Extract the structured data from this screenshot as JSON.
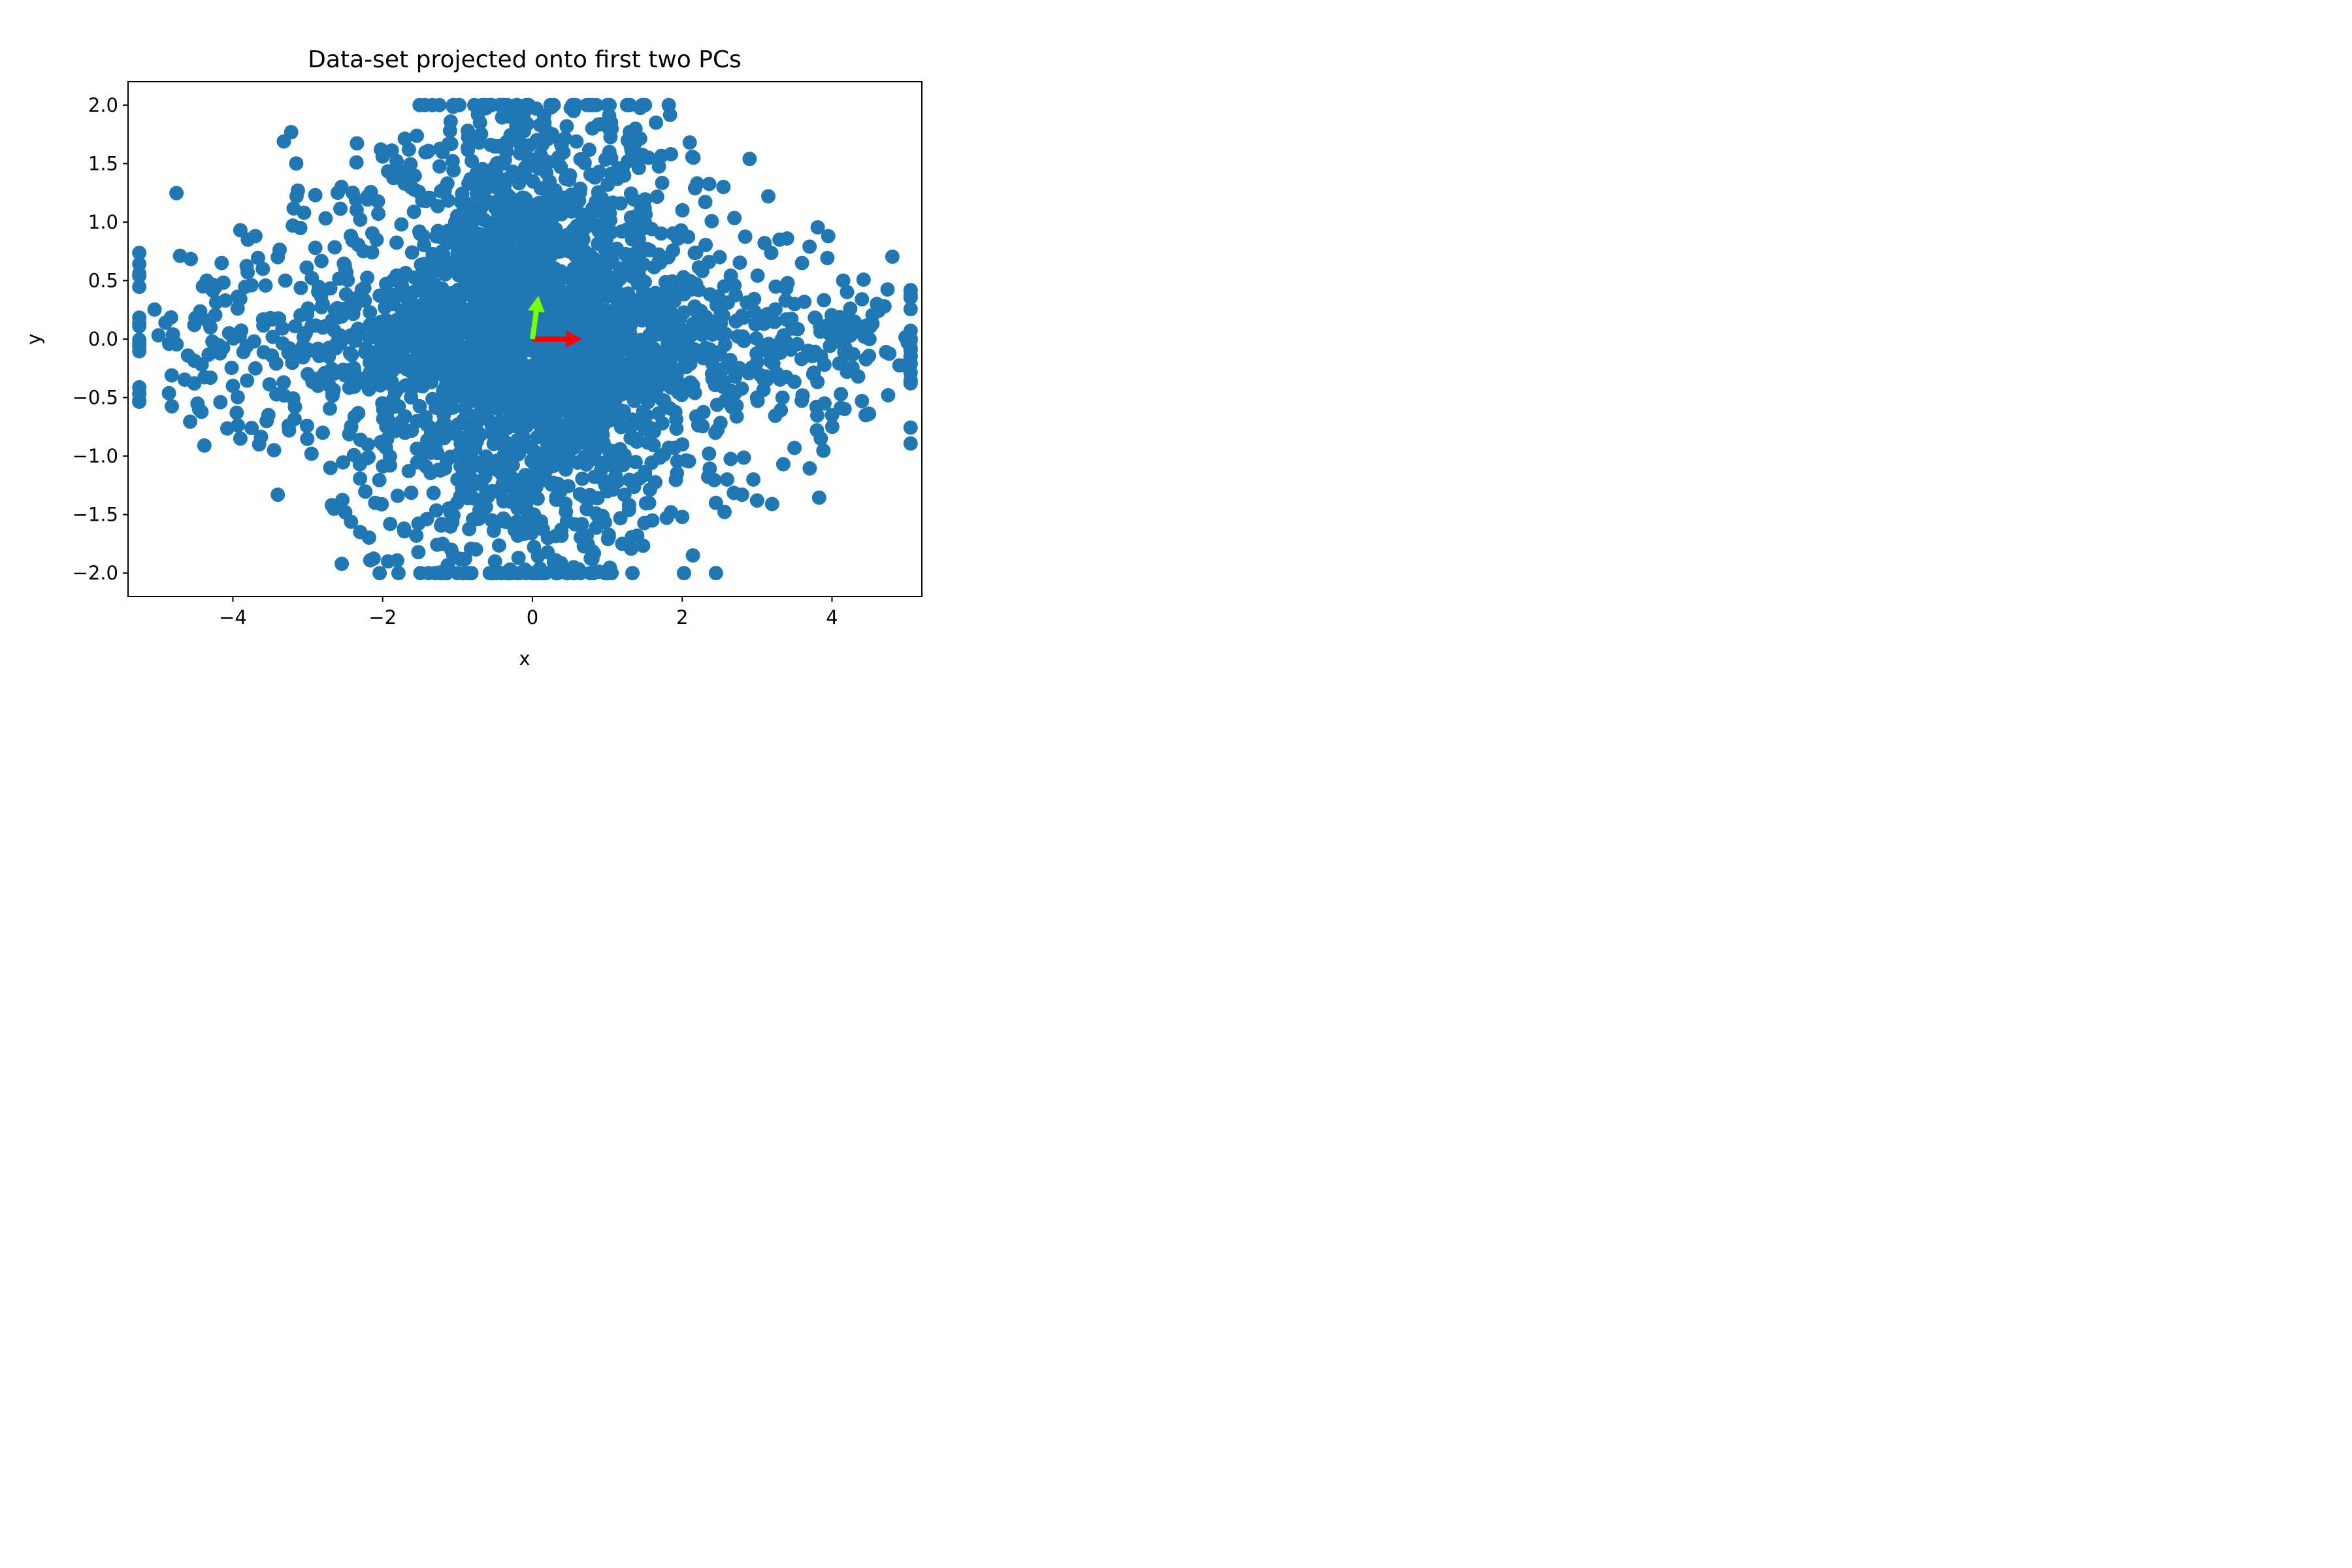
{
  "chart_data": {
    "type": "scatter",
    "title": "Data-set projected onto first two PCs",
    "xlabel": "x",
    "ylabel": "y",
    "xlim": [
      -5.4,
      5.2
    ],
    "ylim": [
      -2.2,
      2.2
    ],
    "xticks": [
      -4,
      -2,
      0,
      2,
      4
    ],
    "xtick_labels": [
      "−4",
      "−2",
      "0",
      "2",
      "4"
    ],
    "yticks": [
      -2.0,
      -1.5,
      -1.0,
      -0.5,
      0.0,
      0.5,
      1.0,
      1.5,
      2.0
    ],
    "ytick_labels": [
      "−2.0",
      "−1.5",
      "−1.0",
      "−0.5",
      "0.0",
      "0.5",
      "1.0",
      "1.5",
      "2.0"
    ],
    "grid": false,
    "legend": null,
    "series": [
      {
        "color": "#1f77b4",
        "points": [
          [
            -4.9,
            0.14
          ],
          [
            -4.85,
            -0.04
          ],
          [
            -4.6,
            -0.14
          ],
          [
            -4.5,
            0.18
          ],
          [
            -4.45,
            -0.6
          ],
          [
            -4.4,
            0.45
          ],
          [
            -4.35,
            0.5
          ],
          [
            -4.3,
            -0.33
          ],
          [
            -4.3,
            0.1
          ],
          [
            -4.2,
            -0.05
          ],
          [
            -4.15,
            0.65
          ],
          [
            -4.1,
            0.33
          ],
          [
            -4.0,
            -0.4
          ],
          [
            -3.95,
            -0.63
          ],
          [
            -3.9,
            0.93
          ],
          [
            -3.9,
            -0.85
          ],
          [
            -3.8,
            0.85
          ],
          [
            -3.75,
            -0.76
          ],
          [
            -3.7,
            0.88
          ],
          [
            -3.65,
            -0.9
          ],
          [
            -3.6,
            0.6
          ],
          [
            -3.55,
            -0.7
          ],
          [
            -3.45,
            -0.95
          ],
          [
            -3.4,
            0.7
          ],
          [
            -3.4,
            -1.33
          ],
          [
            -3.3,
            0.5
          ],
          [
            -3.25,
            -0.78
          ],
          [
            -3.2,
            0.97
          ],
          [
            -3.15,
            1.22
          ],
          [
            -3.1,
            0.95
          ],
          [
            -3.05,
            1.08
          ],
          [
            -2.95,
            -0.98
          ],
          [
            -2.9,
            1.23
          ],
          [
            -2.9,
            0.78
          ],
          [
            -2.8,
            -0.8
          ],
          [
            -2.7,
            -1.1
          ],
          [
            -2.65,
            -1.45
          ],
          [
            -2.6,
            1.25
          ],
          [
            -2.55,
            1.3
          ],
          [
            -2.5,
            -1.48
          ],
          [
            -2.4,
            1.25
          ],
          [
            -2.35,
            1.51
          ],
          [
            -2.3,
            -1.65
          ],
          [
            -2.2,
            1.22
          ],
          [
            -2.1,
            -1.4
          ],
          [
            -2.0,
            1.56
          ],
          [
            -1.9,
            -1.58
          ],
          [
            -1.8,
            1.45
          ],
          [
            -1.65,
            1.62
          ],
          [
            -1.55,
            -1.68
          ],
          [
            -1.4,
            1.6
          ],
          [
            -1.2,
            -1.75
          ],
          [
            -1.1,
            1.78
          ],
          [
            -0.9,
            -1.88
          ],
          [
            -0.7,
            1.85
          ],
          [
            -0.5,
            -1.9
          ],
          [
            -0.3,
            1.9
          ],
          [
            -0.3,
            -1.97
          ],
          [
            -0.1,
            1.95
          ],
          [
            -0.1,
            -1.97
          ],
          [
            0.05,
            1.97
          ],
          [
            0.1,
            -1.96
          ],
          [
            0.25,
            1.98
          ],
          [
            0.3,
            -1.95
          ],
          [
            0.55,
            1.95
          ],
          [
            0.55,
            -1.95
          ],
          [
            0.8,
            1.8
          ],
          [
            0.8,
            -1.88
          ],
          [
            1.05,
            1.85
          ],
          [
            1.2,
            -1.75
          ],
          [
            1.3,
            1.77
          ],
          [
            1.4,
            -1.68
          ],
          [
            1.55,
            1.55
          ],
          [
            1.6,
            -1.55
          ],
          [
            1.65,
            1.85
          ],
          [
            1.85,
            1.58
          ],
          [
            1.85,
            -1.48
          ],
          [
            2.0,
            -1.52
          ],
          [
            2.1,
            1.68
          ],
          [
            2.15,
            1.55
          ],
          [
            2.2,
            1.33
          ],
          [
            2.45,
            -1.4
          ],
          [
            2.55,
            1.3
          ],
          [
            2.6,
            -1.2
          ],
          [
            2.8,
            -1.33
          ],
          [
            2.9,
            1.54
          ],
          [
            2.95,
            -1.2
          ],
          [
            3.0,
            -1.38
          ],
          [
            3.1,
            0.82
          ],
          [
            3.15,
            1.22
          ],
          [
            3.2,
            -1.41
          ],
          [
            3.3,
            0.85
          ],
          [
            3.35,
            -1.07
          ],
          [
            3.4,
            0.86
          ],
          [
            3.5,
            -0.93
          ],
          [
            3.6,
            0.65
          ],
          [
            3.7,
            0.79
          ],
          [
            3.8,
            -0.78
          ],
          [
            3.85,
            -0.85
          ],
          [
            3.95,
            0.88
          ],
          [
            4.0,
            -0.65
          ],
          [
            4.05,
            0.15
          ],
          [
            4.15,
            0.5
          ],
          [
            4.2,
            -0.28
          ],
          [
            4.3,
            0.15
          ],
          [
            4.35,
            -0.32
          ],
          [
            4.4,
            -0.53
          ],
          [
            4.45,
            -0.65
          ],
          [
            4.5,
            0.0
          ],
          [
            4.6,
            0.3
          ],
          [
            4.7,
            0.28
          ],
          [
            4.75,
            -0.48
          ],
          [
            4.4,
            0.34
          ],
          [
            3.9,
            -0.55
          ],
          [
            3.75,
            -0.3
          ],
          [
            -3.5,
            0.18
          ],
          [
            -3.0,
            -0.3
          ],
          [
            -2.5,
            0.6
          ],
          [
            -2.0,
            -0.9
          ],
          [
            -1.5,
            0.9
          ],
          [
            -1.0,
            -1.2
          ],
          [
            -0.5,
            1.3
          ],
          [
            0.5,
            1.4
          ],
          [
            1.0,
            -1.3
          ],
          [
            1.5,
            1.0
          ],
          [
            2.0,
            -0.9
          ],
          [
            2.5,
            0.7
          ],
          [
            3.0,
            -0.5
          ],
          [
            3.5,
            0.3
          ],
          [
            -3.7,
            -0.25
          ],
          [
            -4.05,
            0.05
          ],
          [
            -2.8,
            0.3
          ],
          [
            2.8,
            0.2
          ],
          [
            4.25,
            0.1
          ],
          [
            -1.2,
            0.2
          ]
        ],
        "dense_regions": [
          {
            "center": [
              0,
              0
            ],
            "sx": 0.9,
            "sy": 1.1,
            "count": 1400
          },
          {
            "center": [
              0,
              0
            ],
            "sx": 2.4,
            "sy": 0.35,
            "count": 900
          },
          {
            "center": [
              0,
              0
            ],
            "sx": 1.6,
            "sy": 0.8,
            "count": 700
          }
        ]
      }
    ],
    "arrows": [
      {
        "color": "#ff0000",
        "from": [
          0.0,
          0.0
        ],
        "to": [
          0.66,
          0.0
        ]
      },
      {
        "color": "#7cfc00",
        "from": [
          0.0,
          0.0
        ],
        "to": [
          0.08,
          0.37
        ]
      }
    ]
  }
}
